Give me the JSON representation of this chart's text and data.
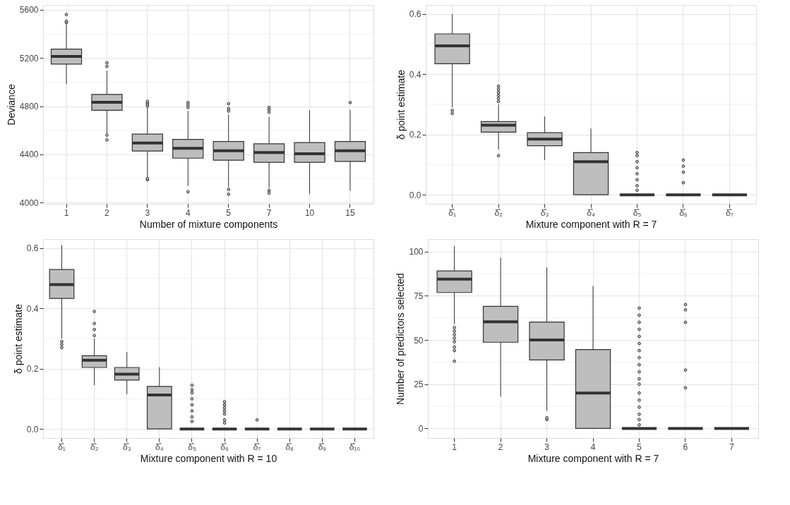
{
  "chart_data": [
    {
      "type": "box",
      "xlabel": "Number of mixture components",
      "ylabel": "Deviance",
      "categories": [
        "1",
        "2",
        "3",
        "4",
        "5",
        "7",
        "10",
        "15"
      ],
      "ylim": [
        3990,
        5640
      ],
      "yticks": [
        4000,
        {
          "value": 4200,
          "label": null
        },
        4400,
        {
          "value": 4600,
          "label": null
        },
        4800,
        {
          "value": 5000,
          "label": null
        },
        5200,
        {
          "value": 5400,
          "label": null
        },
        5600
      ],
      "grid": true,
      "series": [
        {
          "color": "#bebebe",
          "boxes": [
            {
              "low": 4982,
              "q1": 5149,
              "median": 5213,
              "q3": 5273,
              "high": 5487,
              "outliers": [
                5495,
                5505,
                5560
              ]
            },
            {
              "low": 4570,
              "q1": 4766,
              "median": 4832,
              "q3": 4898,
              "high": 5095,
              "outliers": [
                5130,
                5160,
                4560,
                4520
              ]
            },
            {
              "low": 4210,
              "q1": 4428,
              "median": 4494,
              "q3": 4568,
              "high": 4787,
              "outliers": [
                4800,
                4815,
                4830,
                4840,
                4190,
                4200
              ]
            },
            {
              "low": 4140,
              "q1": 4369,
              "median": 4451,
              "q3": 4525,
              "high": 4760,
              "outliers": [
                4790,
                4810,
                4830,
                4090
              ]
            },
            {
              "low": 4130,
              "q1": 4352,
              "median": 4430,
              "q3": 4507,
              "high": 4730,
              "outliers": [
                4760,
                4780,
                4820,
                4110,
                4070
              ]
            },
            {
              "low": 4120,
              "q1": 4334,
              "median": 4416,
              "q3": 4488,
              "high": 4710,
              "outliers": [
                4750,
                4770,
                4790,
                4100,
                4080
              ]
            },
            {
              "low": 4070,
              "q1": 4334,
              "median": 4406,
              "q3": 4498,
              "high": 4766
            },
            {
              "low": 4100,
              "q1": 4342,
              "median": 4430,
              "q3": 4507,
              "high": 4770,
              "outliers": [
                4830
              ]
            }
          ]
        }
      ]
    },
    {
      "type": "box",
      "xlabel": "Mixture component with R = 7",
      "ylabel": "δ point estimate",
      "categories": [
        "δ̂₁",
        "δ̂₂",
        "δ̂₃",
        "δ̂₄",
        "δ̂₅",
        "δ̂₆",
        "δ̂₇"
      ],
      "ylim": [
        -0.03,
        0.63
      ],
      "yticks": [
        {
          "value": 0,
          "label": "0.0"
        },
        {
          "value": 0.1,
          "label": null
        },
        0.2,
        {
          "value": 0.3,
          "label": null
        },
        0.4,
        {
          "value": 0.5,
          "label": null
        },
        0.6
      ],
      "grid": true,
      "series": [
        {
          "color": "#bebebe",
          "boxes": [
            {
              "low": 0.29,
              "q1": 0.435,
              "median": 0.494,
              "q3": 0.534,
              "high": 0.6,
              "outliers": [
                0.27,
                0.28
              ]
            },
            {
              "low": 0.15,
              "q1": 0.208,
              "median": 0.231,
              "q3": 0.243,
              "high": 0.3,
              "outliers": [
                0.31,
                0.32,
                0.33,
                0.34,
                0.35,
                0.36,
                0.13
              ]
            },
            {
              "low": 0.115,
              "q1": 0.163,
              "median": 0.185,
              "q3": 0.206,
              "high": 0.26
            },
            {
              "low": 0,
              "q1": 0,
              "median": 0.11,
              "q3": 0.14,
              "high": 0.22
            },
            {
              "low": 0,
              "q1": 0,
              "median": 0,
              "q3": 0,
              "high": 0,
              "outliers": [
                0.015,
                0.03,
                0.05,
                0.07,
                0.09,
                0.11,
                0.13,
                0.14
              ]
            },
            {
              "low": 0,
              "q1": 0,
              "median": 0,
              "q3": 0,
              "high": 0,
              "outliers": [
                0.04,
                0.075,
                0.095,
                0.115
              ]
            },
            {
              "low": 0,
              "q1": 0,
              "median": 0,
              "q3": 0,
              "high": 0
            }
          ]
        }
      ]
    },
    {
      "type": "box",
      "xlabel": "Mixture component with R = 10",
      "ylabel": "δ point estimate",
      "categories": [
        "δ̂₁",
        "δ̂₂",
        "δ̂₃",
        "δ̂₄",
        "δ̂₅",
        "δ̂₆",
        "δ̂₇",
        "δ̂₈",
        "δ̂₉",
        "δ̂₁₀"
      ],
      "ylim": [
        -0.03,
        0.63
      ],
      "yticks": [
        {
          "value": 0,
          "label": "0.0"
        },
        {
          "value": 0.1,
          "label": null
        },
        0.2,
        {
          "value": 0.3,
          "label": null
        },
        0.4,
        {
          "value": 0.5,
          "label": null
        },
        0.6
      ],
      "grid": true,
      "series": [
        {
          "color": "#bebebe",
          "boxes": [
            {
              "low": 0.3,
              "q1": 0.433,
              "median": 0.479,
              "q3": 0.529,
              "high": 0.61,
              "outliers": [
                0.27,
                0.28,
                0.29
              ]
            },
            {
              "low": 0.145,
              "q1": 0.204,
              "median": 0.228,
              "q3": 0.243,
              "high": 0.3,
              "outliers": [
                0.31,
                0.33,
                0.35,
                0.39
              ]
            },
            {
              "low": 0.115,
              "q1": 0.162,
              "median": 0.182,
              "q3": 0.204,
              "high": 0.255
            },
            {
              "low": 0,
              "q1": 0,
              "median": 0.113,
              "q3": 0.141,
              "high": 0.205
            },
            {
              "low": 0,
              "q1": 0,
              "median": 0,
              "q3": 0,
              "high": 0,
              "outliers": [
                0.025,
                0.04,
                0.06,
                0.08,
                0.1,
                0.12,
                0.13,
                0.145
              ]
            },
            {
              "low": 0,
              "q1": 0,
              "median": 0,
              "q3": 0,
              "high": 0,
              "outliers": [
                0.02,
                0.03,
                0.05,
                0.06,
                0.07,
                0.08,
                0.09
              ]
            },
            {
              "low": 0,
              "q1": 0,
              "median": 0,
              "q3": 0,
              "high": 0,
              "outliers": [
                0.03
              ]
            },
            {
              "low": 0,
              "q1": 0,
              "median": 0,
              "q3": 0,
              "high": 0
            },
            {
              "low": 0,
              "q1": 0,
              "median": 0,
              "q3": 0,
              "high": 0
            },
            {
              "low": 0,
              "q1": 0,
              "median": 0,
              "q3": 0,
              "high": 0
            }
          ]
        }
      ]
    },
    {
      "type": "box",
      "xlabel": "Mixture component with R = 7",
      "ylabel": "Number of predictors selected",
      "categories": [
        "1",
        "2",
        "3",
        "4",
        "5",
        "6",
        "7"
      ],
      "ylim": [
        -5.4,
        107
      ],
      "yticks": [
        0,
        {
          "value": 12.5,
          "label": null
        },
        25,
        {
          "value": 37.5,
          "label": null
        },
        50,
        {
          "value": 62.5,
          "label": null
        },
        75,
        {
          "value": 87.5,
          "label": null
        },
        100
      ],
      "grid": true,
      "series": [
        {
          "color": "#bebebe",
          "boxes": [
            {
              "low": 59,
              "q1": 76.8,
              "median": 84.4,
              "q3": 89,
              "high": 103,
              "outliers": [
                38,
                44,
                46,
                49,
                51,
                53,
                55,
                57
              ]
            },
            {
              "low": 18,
              "q1": 48.7,
              "median": 60.3,
              "q3": 69,
              "high": 96.5
            },
            {
              "low": 10,
              "q1": 38.7,
              "median": 50,
              "q3": 60.1,
              "high": 91,
              "outliers": [
                5,
                6
              ]
            },
            {
              "low": 0,
              "q1": 0,
              "median": 20,
              "q3": 44.6,
              "high": 80.5
            },
            {
              "low": 0,
              "q1": 0,
              "median": 0,
              "q3": 0,
              "high": 0,
              "outliers": [
                2,
                5,
                8,
                12,
                16,
                20,
                25,
                28,
                32,
                36,
                40,
                44,
                48,
                52,
                56,
                60,
                64,
                68
              ]
            },
            {
              "low": 0,
              "q1": 0,
              "median": 0,
              "q3": 0,
              "high": 0,
              "outliers": [
                23,
                33,
                60,
                67,
                70
              ]
            },
            {
              "low": 0,
              "q1": 0,
              "median": 0,
              "q3": 0,
              "high": 0
            }
          ]
        }
      ]
    }
  ]
}
